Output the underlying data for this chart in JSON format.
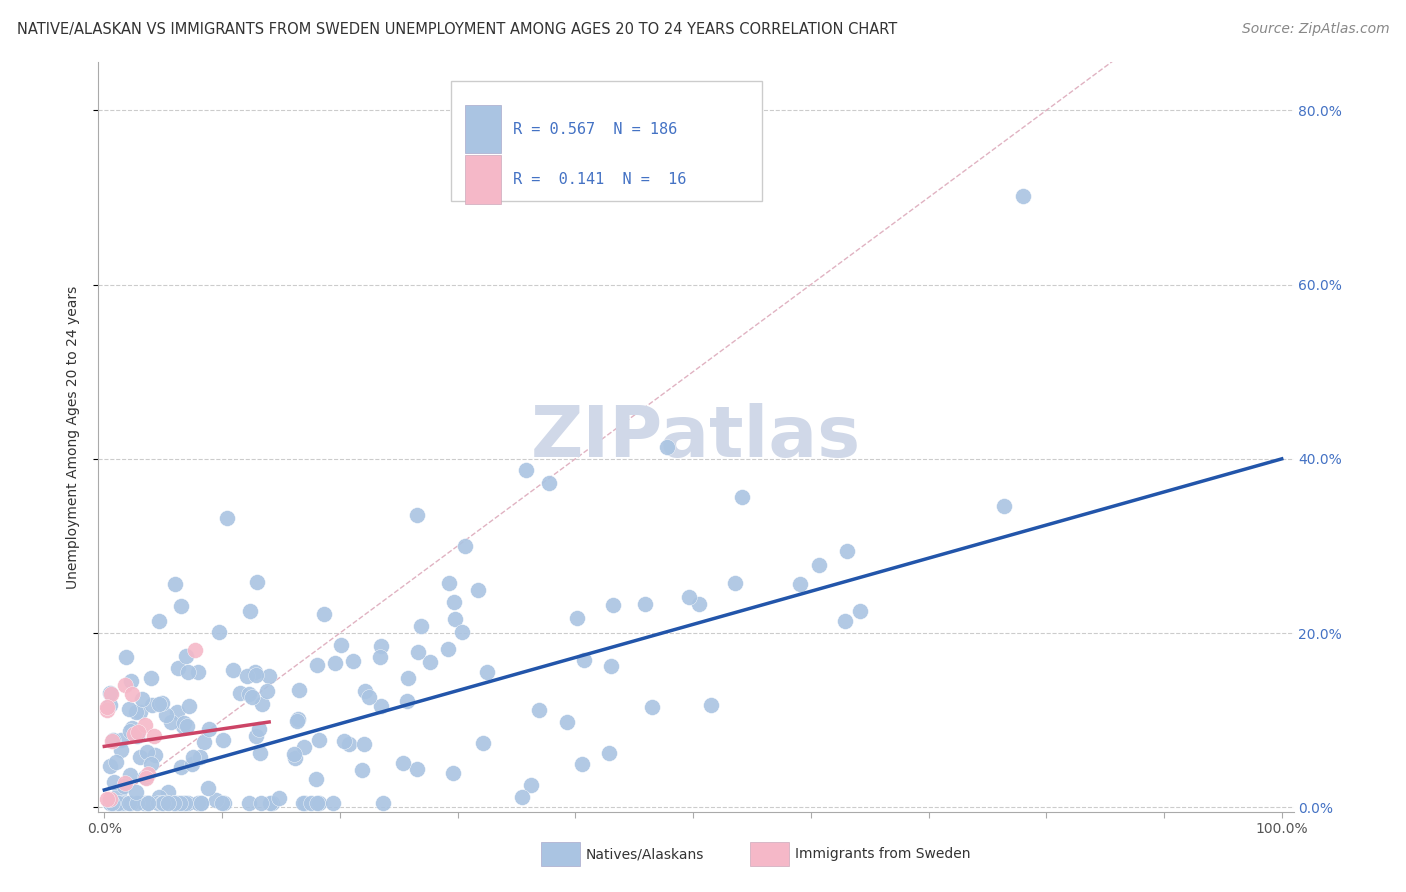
{
  "title": "NATIVE/ALASKAN VS IMMIGRANTS FROM SWEDEN UNEMPLOYMENT AMONG AGES 20 TO 24 YEARS CORRELATION CHART",
  "source": "Source: ZipAtlas.com",
  "ylabel": "Unemployment Among Ages 20 to 24 years",
  "xlim": [
    0.0,
    1.0
  ],
  "ylim": [
    0.0,
    0.85
  ],
  "ytick_positions": [
    0.0,
    0.2,
    0.4,
    0.6,
    0.8
  ],
  "ytick_labels": [
    "0.0%",
    "20.0%",
    "40.0%",
    "60.0%",
    "80.0%"
  ],
  "xtick_labels_show": [
    "0.0%",
    "100.0%"
  ],
  "legend_R1": "0.567",
  "legend_N1": "186",
  "legend_R2": "0.141",
  "legend_N2": "16",
  "color_blue": "#aac4e2",
  "color_pink": "#f5b8c8",
  "line_blue": "#2255aa",
  "line_pink": "#cc4466",
  "line_diagonal_color": "#ddaabb",
  "background_color": "#ffffff",
  "watermark_text": "ZIPatlas",
  "watermark_color": "#d0d8e8",
  "slope_blue": 0.38,
  "intercept_blue": 0.02,
  "slope_pink": 0.2,
  "intercept_pink": 0.07,
  "title_fontsize": 10.5,
  "source_fontsize": 10,
  "label_fontsize": 10,
  "tick_fontsize": 10,
  "legend_fontsize": 11
}
